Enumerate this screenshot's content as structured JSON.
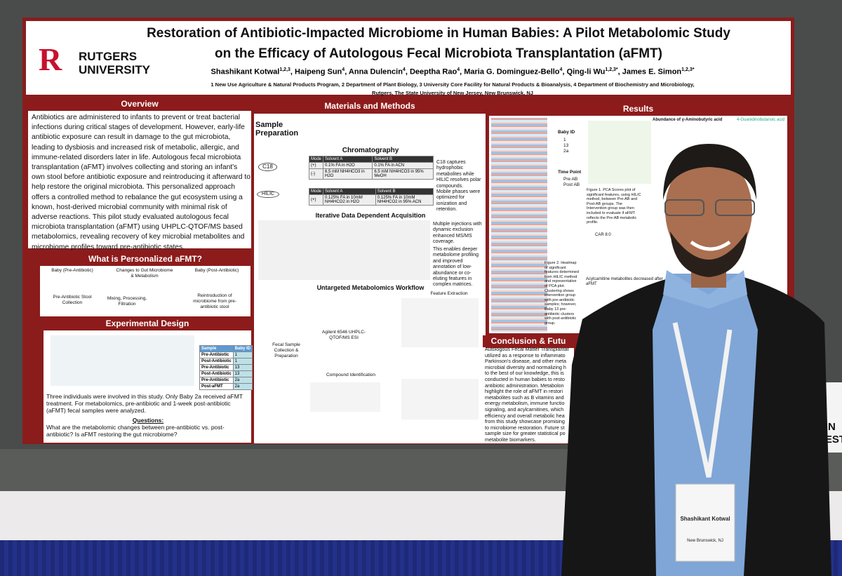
{
  "poster": {
    "logo": {
      "letter": "R",
      "line1": "RUTGERS",
      "line2": "UNIVERSITY"
    },
    "title": [
      "Restoration of Antibiotic-Impacted Microbiome in Human Babies: A Pilot Metabolomic Study",
      "on the Efficacy of Autologous Fecal Microbiota Transplantation (aFMT)"
    ],
    "authors": [
      {
        "name": "Shashikant Kotwal",
        "sup": "1,2,3"
      },
      {
        "name": "Haipeng Sun",
        "sup": "4"
      },
      {
        "name": "Anna Dulencin",
        "sup": "4"
      },
      {
        "name": "Deeptha Rao",
        "sup": "4"
      },
      {
        "name": "Maria G. Dominguez-Bello",
        "sup": "4"
      },
      {
        "name": "Qing-li Wu",
        "sup": "1,2,3*"
      },
      {
        "name": "James E. Simon",
        "sup": "1,2,3*"
      }
    ],
    "affiliations": [
      "1 New Use Agriculture & Natural Products Program, 2 Department of Plant Biology, 3 University Core Facility for Natural Products & Bioanalysis, 4 Department of Biochemistry and Microbiology,",
      "Rutgers, The State University of New Jersey, New Brunswick, NJ"
    ],
    "overview": {
      "heading": "Overview",
      "text": "Antibiotics are administered to infants to prevent or treat bacterial infections during critical stages of development. However, early-life antibiotic exposure can result in damage to the gut microbiota, leading to dysbiosis and increased risk of metabolic, allergic, and immune-related disorders later in life. Autologous fecal microbiota transplantation (aFMT) involves collecting and storing an infant's own stool before antibiotic exposure and reintroducing it afterward to help restore the original microbiota. This personalized approach offers a controlled method to rebalance the gut ecosystem using a known, host-derived microbial community with minimal risk of adverse reactions. This pilot study evaluated autologous fecal microbiota transplantation (aFMT) using UHPLC-QTOF/MS based metabolomics, revealing recovery of key microbial metabolites and microbiome profiles toward pre-antibiotic states."
    },
    "personalized": {
      "heading": "What is Personalized aFMT?",
      "labels": [
        "Baby (Pre-Antibiotic)",
        "Changes to Gut Microbiome & Metabolism",
        "Baby (Post-Antibiotic)",
        "Pre-Antibiotic Stool Collection",
        "Mixing, Processing, Filtration",
        "Reintroduction of microbiome from pre-antibiotic stool"
      ]
    },
    "design": {
      "heading": "Experimental Design",
      "table": {
        "header": [
          "Sample",
          "Baby ID"
        ],
        "rows": [
          [
            "Pre-Antibiotic",
            "1"
          ],
          [
            "Post-Antibiotic",
            "1"
          ],
          [
            "Pre-Antibiotic",
            "13"
          ],
          [
            "Post-Antibiotic",
            "13"
          ],
          [
            "Pre-Antibiotic",
            "2a"
          ],
          [
            "Post-aFMT",
            "2a"
          ]
        ]
      },
      "text": "Three individuals were involved in this study. Only Baby 2a received aFMT treatment. For metabolomics, pre-antibiotic and 1-week post-antibiotic (aFMT) fecal samples were analyzed.",
      "questions_heading": "Questions:",
      "questions": "What are the metabolomic changes between pre-antibiotic vs. post-antibiotic? Is aFMT restoring the gut microbiome?"
    },
    "methods": {
      "heading": "Materials and Methods",
      "sample_prep": "Sample Preparation",
      "chrom_heading": "Chromatography",
      "c18": "C18",
      "hilic": "HILIC",
      "chrom_table_header": [
        "Mode",
        "Solvent A",
        "Solvent B"
      ],
      "c18_rows": [
        [
          "(+)",
          "0.1% FA in H2O",
          "0.1% FA in ACN"
        ],
        [
          "(-)",
          "6.5 mM NH4HCO3 in H2O",
          "6.5 mM NH4HCO3 in 95% MeOH"
        ]
      ],
      "hilic_rows": [
        [
          "(+)",
          "0.125% FA in 10mM NH4HCO2 in H2O",
          "0.125% FA in 10mM NH4HCO2 in 95% ACN"
        ]
      ],
      "chrom_notes": [
        "C18 captures hydrophobic metabolites while HILIC resolves polar compounds.",
        "Mobile phases were optimized for ionization and retention."
      ],
      "idda_heading": "Iterative Data Dependent Acquisition",
      "idda_notes": [
        "Multiple injections with dynamic exclusion enhanced MS/MS coverage.",
        "This enables deeper metabolome profiling and improved annotation of low-abundance or co-eluting features in complex matrices."
      ],
      "workflow_heading": "Untargeted Metabolomics Workflow",
      "workflow_labels": [
        "Fecal Sample Collection & Preparation",
        "Agilent 6546 UHPLC-QTOF/MS ESI",
        "Feature Extraction",
        "Compound Identification"
      ]
    },
    "results": {
      "heading": "Results",
      "legend_baby": "Baby ID",
      "babies": [
        "1",
        "13",
        "2a"
      ],
      "legend_time": "Time Point",
      "times": [
        "Pre AB",
        "Post AB"
      ],
      "gaba": "Abundance of γ-Aminobutyric acid",
      "guan": "4-Guanidinobutanoic acid",
      "fig1": "Figure 1. PCA Scores plot of significant features, using HILIC method, between Pre-AB and Post-AB groups. The Intervention group was then included to evaluate if aFMT reflects the Pre-AB metabolic profile.",
      "fig2": "Figure 2. Heatmap of significant features determined from HILIC method and representative of PCA plot. Clustering shows intervention group with pre-antibiotic samples; however, Baby 13 pre-antibiotic clusters with post-antibiotic group.",
      "car": "CAR 8:0",
      "acyl": "Acylcarnitine metabolites decreased after aFMT"
    },
    "conclusion": {
      "heading": "Conclusion & Futu",
      "lines": [
        "Autologous Fecal Matter Transplantat",
        "utilized as a response to inflammato",
        "Parkinson's disease, and other meta",
        "microbial diversity and normalizing h",
        "to the best of our knowledge, this is",
        "conducted in human babies to resto",
        "antibiotic administration. Metabolon",
        "highlight the role of aFMT in restori",
        "metabolites such as B vitamins and",
        "energy metabolism, immune functio",
        "signaling, and acylcarnitines, which",
        "efficiency and overall metabolic hea",
        "from this study showcase promising",
        "to microbiome restoration. Future st",
        "sample size for greater statistical po",
        "metabolite biomarkers."
      ]
    }
  },
  "badge": {
    "name": "Shashikant Kotwal",
    "place": "New Brunswick, NJ"
  },
  "sign": [
    "RIN",
    "UEST"
  ]
}
